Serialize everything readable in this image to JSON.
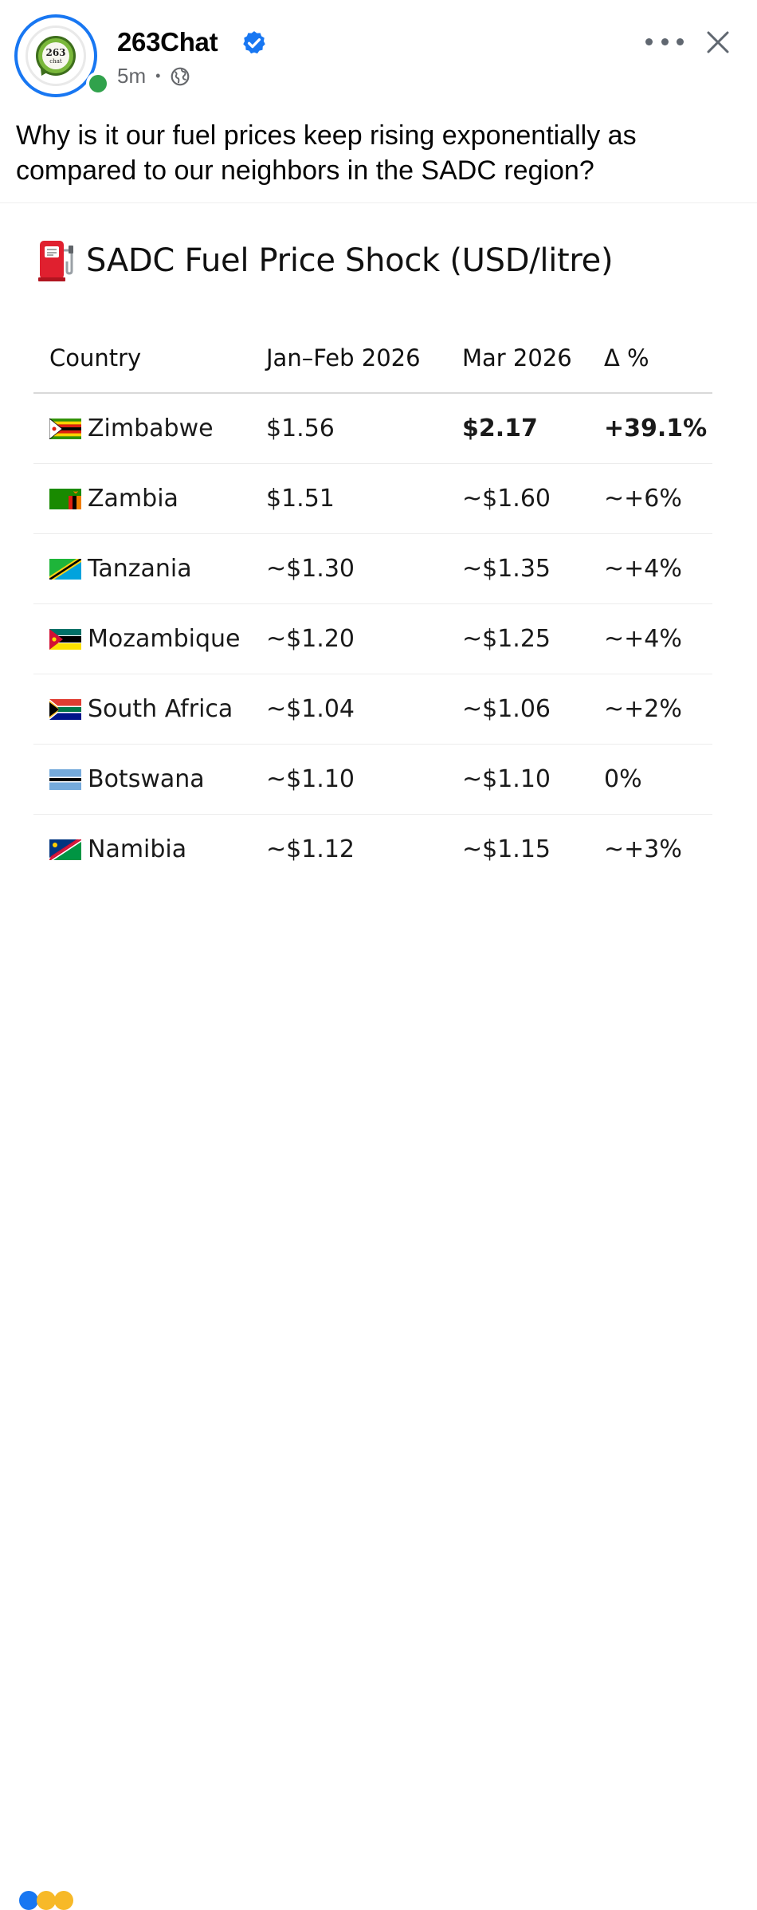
{
  "post": {
    "page_name": "263Chat",
    "time": "5m",
    "separator": "•",
    "text": "Why is it our fuel prices keep rising exponentially as compared to our neighbors in the SADC region?",
    "avatar": {
      "logo_number": "263",
      "logo_word": "chat"
    },
    "icons": [
      "verified-badge-icon",
      "globe-icon",
      "more-options-icon",
      "close-icon"
    ],
    "colors": {
      "verified": "#1877f2",
      "online": "#31a24c",
      "meta": "#65676b"
    }
  },
  "card": {
    "title": "SADC Fuel Price Shock (USD/litre)",
    "title_icon": "fuel-pump-icon",
    "table": {
      "headers": [
        "Country",
        "Jan–Feb 2026",
        "Mar 2026",
        "Δ %"
      ],
      "rows": [
        {
          "country": "Zimbabwe",
          "flag": "zimbabwe-flag-icon",
          "jan_feb": "$1.56",
          "mar": "$2.17",
          "change": "+39.1%"
        },
        {
          "country": "Zambia",
          "flag": "zambia-flag-icon",
          "jan_feb": "$1.51",
          "mar": "~$1.60",
          "change": "~+6%"
        },
        {
          "country": "Tanzania",
          "flag": "tanzania-flag-icon",
          "jan_feb": "~$1.30",
          "mar": "~$1.35",
          "change": "~+4%"
        },
        {
          "country": "Mozambique",
          "flag": "mozambique-flag-icon",
          "jan_feb": "~$1.20",
          "mar": "~$1.25",
          "change": "~+4%"
        },
        {
          "country": "South Africa",
          "flag": "south-africa-flag-icon",
          "jan_feb": "~$1.04",
          "mar": "~$1.06",
          "change": "~+2%"
        },
        {
          "country": "Botswana",
          "flag": "botswana-flag-icon",
          "jan_feb": "~$1.10",
          "mar": "~$1.10",
          "change": "0%"
        },
        {
          "country": "Namibia",
          "flag": "namibia-flag-icon",
          "jan_feb": "~$1.12",
          "mar": "~$1.15",
          "change": "~+3%"
        }
      ]
    }
  }
}
